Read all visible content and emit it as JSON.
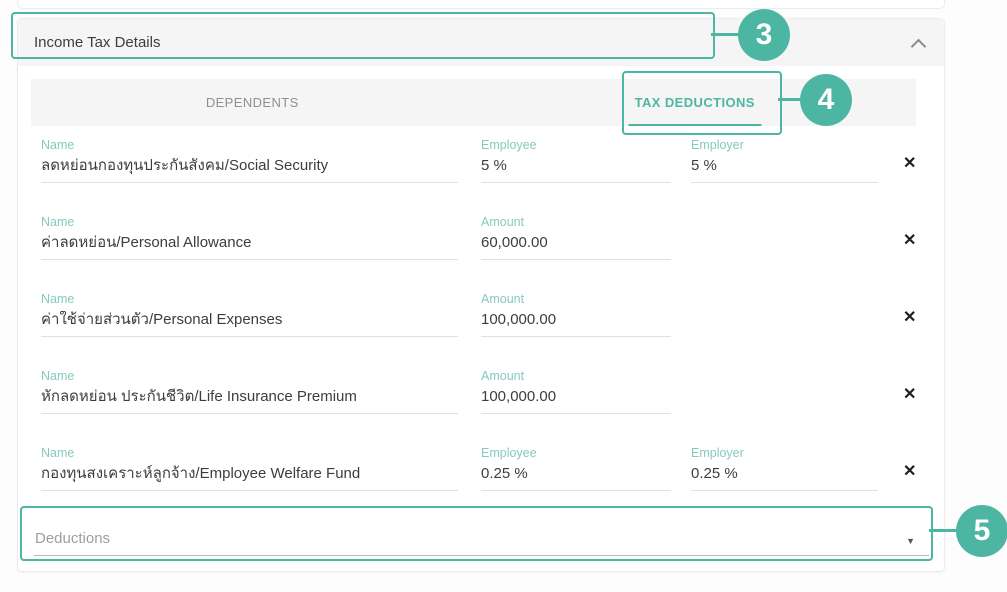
{
  "colors": {
    "accent": "#4db6a2",
    "field_label": "#85cabe",
    "value_text": "#3d3d3d",
    "inactive_tab": "#8f8f8f",
    "header_bg": "#f5f5f5"
  },
  "section": {
    "title": "Income Tax Details"
  },
  "tabs": {
    "dependents": "DEPENDENTS",
    "tax_deductions": "TAX DEDUCTIONS"
  },
  "rows": [
    {
      "fields": [
        {
          "label": "Name",
          "value": "ลดหย่อนกองทุนประกันสังคม/Social Security"
        },
        {
          "label": "Employee",
          "value": "5 %"
        },
        {
          "label": "Employer",
          "value": "5 %"
        }
      ]
    },
    {
      "fields": [
        {
          "label": "Name",
          "value": "ค่าลดหย่อน/Personal Allowance"
        },
        {
          "label": "Amount",
          "value": "60,000.00"
        }
      ]
    },
    {
      "fields": [
        {
          "label": "Name",
          "value": "ค่าใช้จ่ายส่วนตัว/Personal Expenses"
        },
        {
          "label": "Amount",
          "value": "100,000.00"
        }
      ]
    },
    {
      "fields": [
        {
          "label": "Name",
          "value": "หักลดหย่อน ประกันชีวิต/Life Insurance Premium"
        },
        {
          "label": "Amount",
          "value": "100,000.00"
        }
      ]
    },
    {
      "fields": [
        {
          "label": "Name",
          "value": "กองทุนสงเคราะห์ลูกจ้าง/Employee Welfare Fund"
        },
        {
          "label": "Employee",
          "value": "0.25 %"
        },
        {
          "label": "Employer",
          "value": "0.25 %"
        }
      ]
    }
  ],
  "deductions_select": {
    "placeholder": "Deductions"
  },
  "annotations": {
    "step3": "3",
    "step4": "4",
    "step5": "5"
  },
  "icons": {
    "close": "✕",
    "dropdown_arrow": "▼"
  }
}
